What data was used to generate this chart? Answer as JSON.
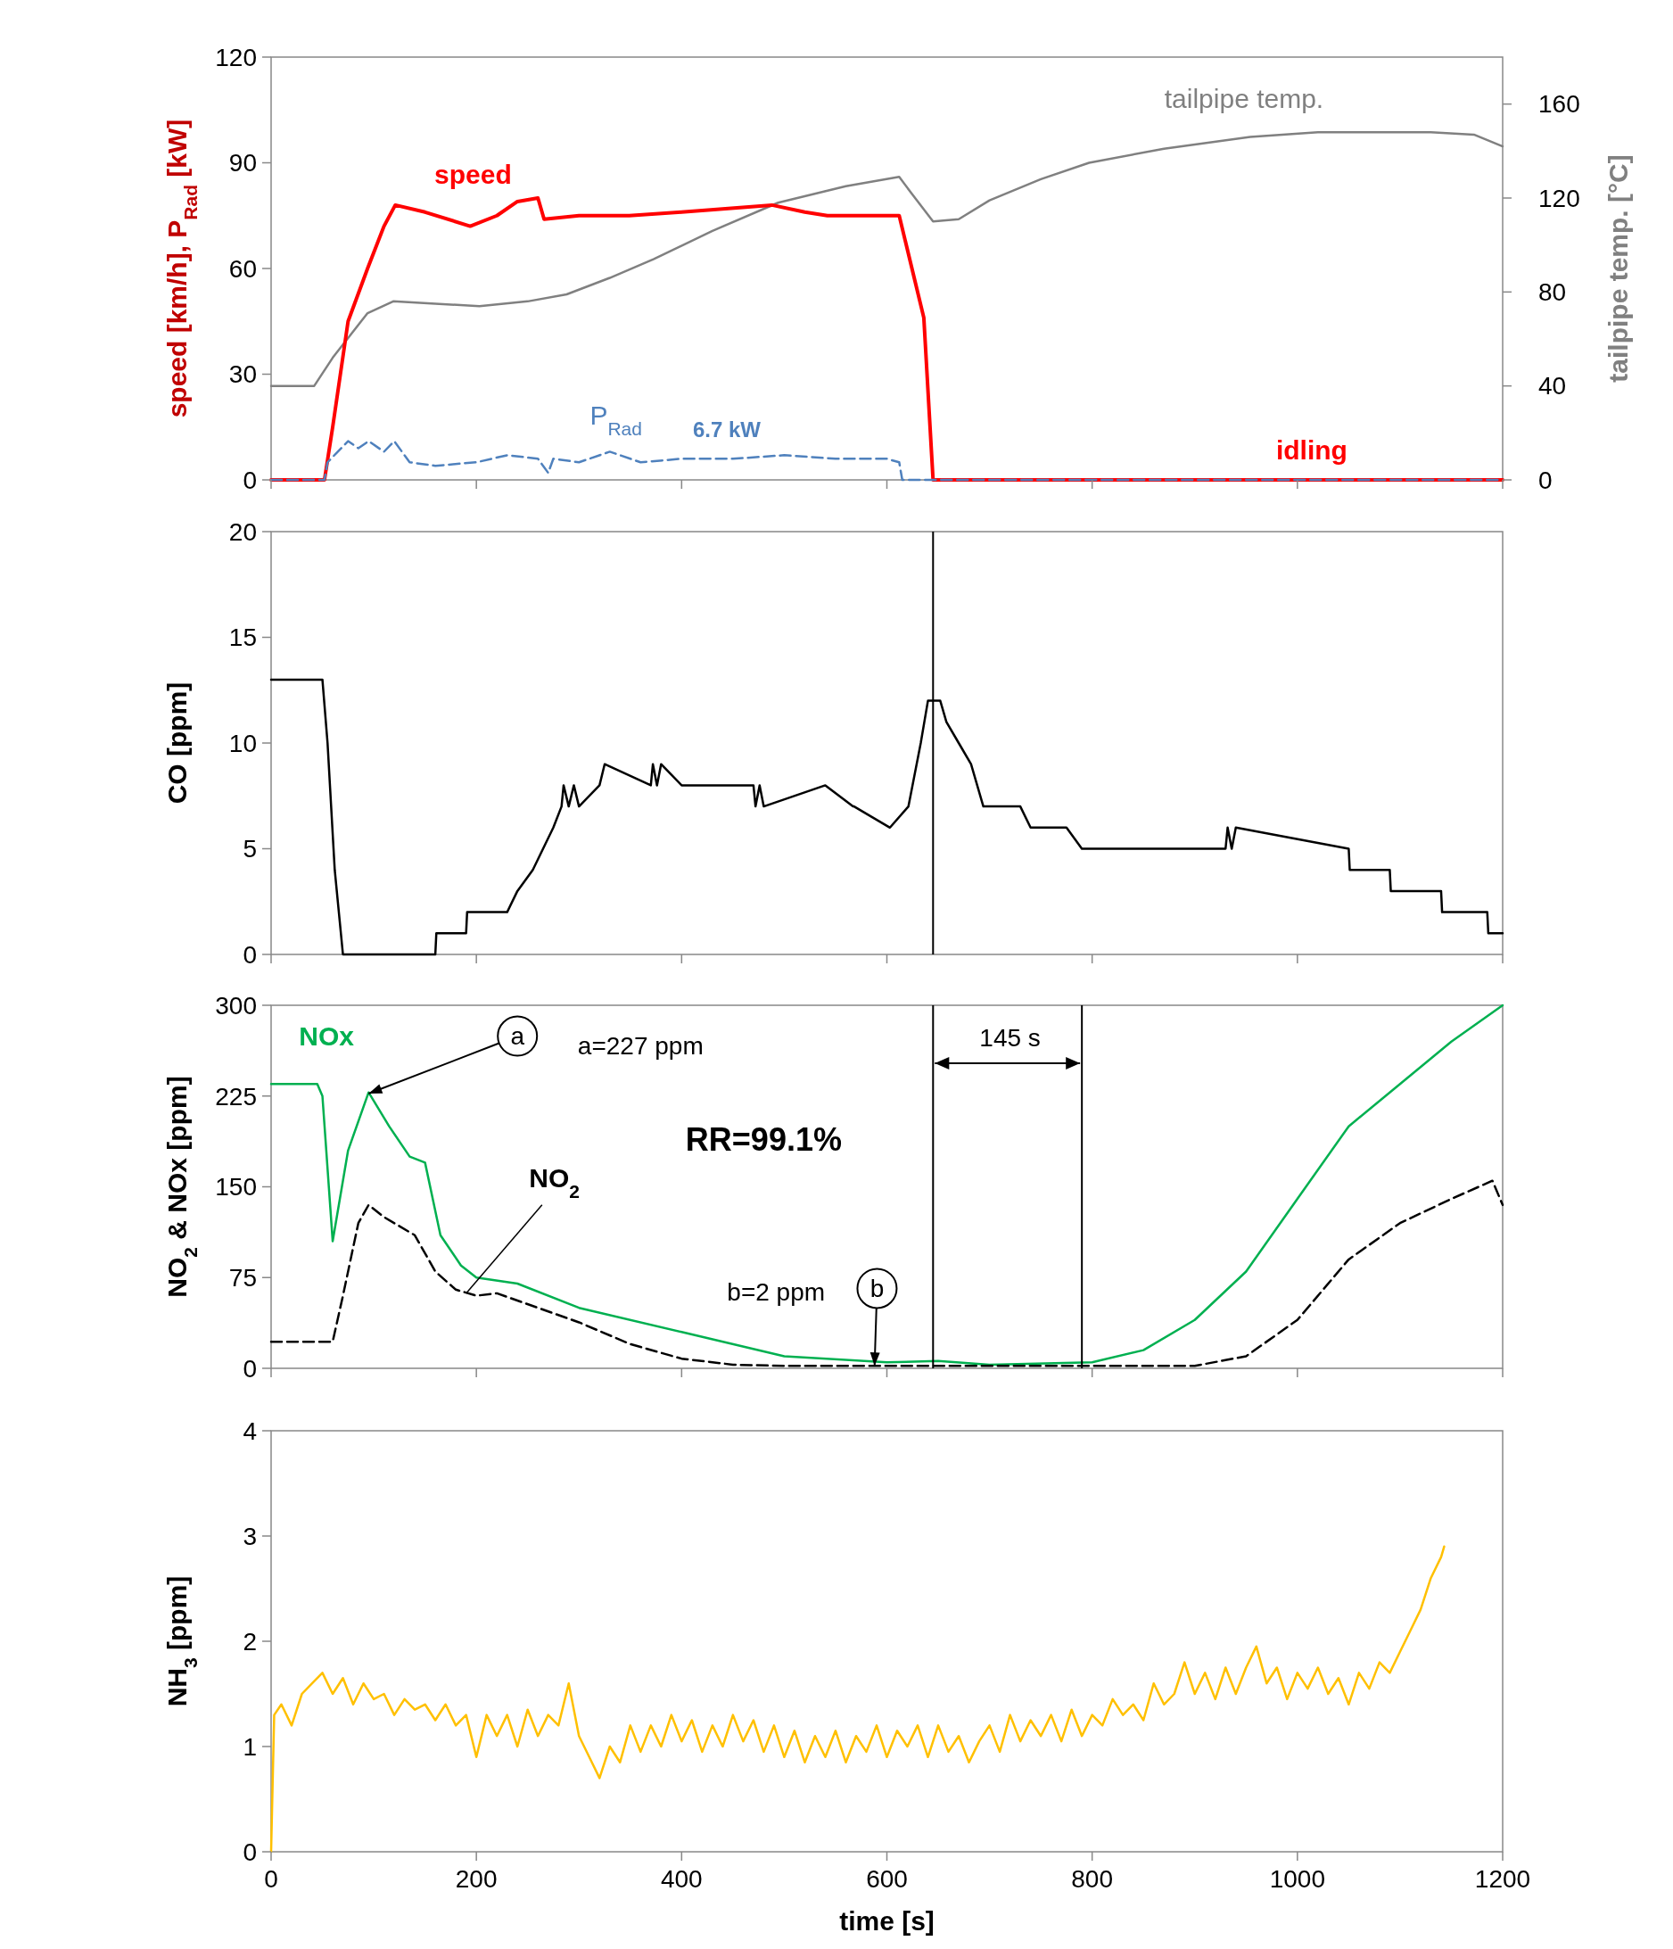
{
  "chart_data": [
    {
      "type": "line",
      "ylabel": "speed [km/h], P$_{Rad}$ [kW]",
      "y2label": "tailpipe temp. [°C]",
      "xlim": [
        0,
        1200
      ],
      "xticks": [
        0,
        200,
        400,
        600,
        800,
        1000,
        1200
      ],
      "ylim": [
        0,
        120
      ],
      "yticks": [
        0,
        30,
        60,
        90,
        120
      ],
      "y2lim": [
        0,
        180
      ],
      "y2ticks": [
        0,
        40,
        80,
        120,
        160
      ],
      "tick_labels": "y",
      "annotations": [
        "6.7 kW",
        "idling"
      ],
      "series": [
        {
          "name": "tailpipe temp.",
          "color": "#808080",
          "axis": "y2",
          "line_style": "solid",
          "x": [
            0,
            42,
            60,
            94,
            119,
            160,
            203,
            250,
            288,
            330,
            373,
            430,
            494,
            560,
            612,
            624,
            645,
            670,
            700,
            750,
            797,
            870,
            954,
            1020,
            1075,
            1130,
            1172,
            1200
          ],
          "values": [
            40,
            40,
            52,
            71,
            76,
            75,
            74,
            76,
            79,
            86,
            94,
            106,
            118,
            125,
            129,
            122,
            110,
            111,
            119,
            128,
            135,
            141,
            146,
            148,
            148,
            148,
            147,
            142
          ]
        },
        {
          "name": "speed",
          "color": "#ff0000",
          "line_style": "solid",
          "x": [
            0,
            52,
            60,
            75,
            94,
            110,
            121,
            150,
            194,
            220,
            240,
            260,
            266,
            300,
            349,
            400,
            488,
            520,
            542,
            612,
            636,
            645,
            1200
          ],
          "values": [
            0,
            0,
            15,
            45,
            60,
            72,
            78,
            76,
            72,
            75,
            79,
            80,
            74,
            75,
            75,
            76,
            78,
            76,
            75,
            75,
            46,
            0,
            0
          ]
        },
        {
          "name": "P$_{Rad}$",
          "color": "#4f81bd",
          "line_style": "dashed",
          "x": [
            0,
            52,
            55,
            65,
            75,
            85,
            95,
            110,
            120,
            135,
            160,
            200,
            230,
            260,
            270,
            275,
            300,
            330,
            360,
            400,
            450,
            500,
            550,
            600,
            612,
            615,
            1200
          ],
          "values": [
            0,
            0,
            5,
            8,
            11,
            9,
            11,
            8,
            11,
            5,
            4,
            5,
            7,
            6,
            2,
            6,
            5,
            8,
            5,
            6,
            6,
            7,
            6,
            6,
            5,
            0,
            0
          ]
        }
      ]
    },
    {
      "type": "line",
      "ylabel": "CO [ppm]",
      "xlim": [
        0,
        1200
      ],
      "xticks": [
        0,
        200,
        400,
        600,
        800,
        1000,
        1200
      ],
      "ylim": [
        0,
        20
      ],
      "yticks": [
        0,
        5,
        10,
        15,
        20
      ],
      "tick_labels": "y",
      "ref_lines": [
        {
          "axis": "x",
          "value": 645,
          "color": "#000000"
        }
      ],
      "series": [
        {
          "color": "#000000",
          "line_style": "solid",
          "x": [
            0,
            50,
            55,
            62,
            70,
            160,
            161,
            190,
            191,
            230,
            240,
            255,
            265,
            275,
            283,
            285,
            290,
            295,
            300,
            320,
            325,
            370,
            372,
            376,
            380,
            400,
            470,
            472,
            476,
            480,
            540,
            567,
            568,
            603,
            621,
            633,
            640,
            652,
            658,
            670,
            682,
            694,
            730,
            740,
            775,
            790,
            930,
            932,
            936,
            940,
            1050,
            1051,
            1090,
            1091,
            1140,
            1141,
            1185,
            1186,
            1200
          ],
          "values": [
            13,
            13,
            10,
            4,
            0,
            0,
            1,
            1,
            2,
            2,
            3,
            4,
            5,
            6,
            7,
            8,
            7,
            8,
            7,
            8,
            9,
            8,
            9,
            8,
            9,
            8,
            8,
            7,
            8,
            7,
            8,
            7,
            7,
            6,
            7,
            10,
            12,
            12,
            11,
            10,
            9,
            7,
            7,
            6,
            6,
            5,
            5,
            6,
            5,
            6,
            5,
            4,
            4,
            3,
            3,
            2,
            2,
            1,
            1
          ]
        }
      ]
    },
    {
      "type": "line",
      "ylabel": "NO$_{2}$ & NOx [ppm]",
      "xlim": [
        0,
        1200
      ],
      "xticks": [
        0,
        200,
        400,
        600,
        800,
        1000,
        1200
      ],
      "ylim": [
        0,
        300
      ],
      "yticks": [
        0,
        75,
        150,
        225,
        300
      ],
      "tick_labels": "y",
      "ref_lines": [
        {
          "axis": "x",
          "value": 645,
          "color": "#000000"
        },
        {
          "axis": "x",
          "value": 790,
          "color": "#000000"
        }
      ],
      "annotations": [
        {
          "text": "a",
          "x": 95,
          "y": 227
        },
        "a=227 ppm",
        "RR=99.1%",
        {
          "text": "b",
          "x": 588,
          "y": 2
        },
        "b=2 ppm",
        "145 s"
      ],
      "series": [
        {
          "name": "NOx",
          "color": "#00b050",
          "line_style": "solid",
          "x": [
            0,
            45,
            50,
            60,
            75,
            95,
            115,
            135,
            150,
            165,
            185,
            200,
            240,
            300,
            400,
            500,
            600,
            650,
            700,
            800,
            850,
            900,
            950,
            1000,
            1050,
            1100,
            1150,
            1200
          ],
          "values": [
            235,
            235,
            225,
            105,
            180,
            228,
            200,
            175,
            170,
            110,
            85,
            75,
            70,
            50,
            30,
            10,
            5,
            6,
            3,
            5,
            15,
            40,
            80,
            140,
            200,
            235,
            270,
            300
          ]
        },
        {
          "name": "NO$_{2}$",
          "color": "#000000",
          "line_style": "dashed",
          "x": [
            0,
            60,
            70,
            85,
            95,
            110,
            140,
            160,
            180,
            200,
            220,
            260,
            300,
            350,
            400,
            450,
            500,
            900,
            950,
            1000,
            1050,
            1100,
            1150,
            1190,
            1200
          ],
          "values": [
            22,
            22,
            60,
            120,
            135,
            125,
            110,
            80,
            65,
            60,
            62,
            50,
            38,
            20,
            8,
            3,
            2,
            2,
            10,
            40,
            90,
            120,
            140,
            155,
            135
          ]
        }
      ]
    },
    {
      "type": "line",
      "ylabel": "NH$_{3}$ [ppm]",
      "xlabel": "time [s]",
      "xlim": [
        0,
        1200
      ],
      "xticks": [
        0,
        200,
        400,
        600,
        800,
        1000,
        1200
      ],
      "ylim": [
        0,
        4
      ],
      "yticks": [
        0,
        1,
        2,
        3,
        4
      ],
      "series": [
        {
          "color": "#ffc000",
          "line_style": "solid",
          "x": [
            0,
            3,
            10,
            20,
            30,
            40,
            50,
            60,
            70,
            80,
            90,
            100,
            110,
            120,
            130,
            140,
            150,
            160,
            170,
            180,
            190,
            200,
            210,
            220,
            230,
            240,
            250,
            260,
            270,
            280,
            290,
            300,
            310,
            320,
            330,
            340,
            350,
            360,
            370,
            380,
            390,
            400,
            410,
            420,
            430,
            440,
            450,
            460,
            470,
            480,
            490,
            500,
            510,
            520,
            530,
            540,
            550,
            560,
            570,
            580,
            590,
            600,
            610,
            620,
            630,
            640,
            650,
            660,
            670,
            680,
            690,
            700,
            710,
            720,
            730,
            740,
            750,
            760,
            770,
            780,
            790,
            800,
            810,
            820,
            830,
            840,
            850,
            860,
            870,
            880,
            890,
            900,
            910,
            920,
            930,
            940,
            950,
            960,
            970,
            980,
            990,
            1000,
            1010,
            1020,
            1030,
            1040,
            1050,
            1060,
            1070,
            1080,
            1090,
            1100,
            1110,
            1120,
            1130,
            1140,
            1143
          ],
          "values": [
            0,
            1.3,
            1.4,
            1.2,
            1.5,
            1.6,
            1.7,
            1.5,
            1.65,
            1.4,
            1.6,
            1.45,
            1.5,
            1.3,
            1.45,
            1.35,
            1.4,
            1.25,
            1.4,
            1.2,
            1.3,
            0.9,
            1.3,
            1.1,
            1.3,
            1.0,
            1.35,
            1.1,
            1.3,
            1.2,
            1.6,
            1.1,
            0.9,
            0.7,
            1.0,
            0.85,
            1.2,
            0.95,
            1.2,
            1.0,
            1.3,
            1.05,
            1.25,
            0.95,
            1.2,
            1.0,
            1.3,
            1.05,
            1.25,
            0.95,
            1.2,
            0.9,
            1.15,
            0.85,
            1.1,
            0.9,
            1.15,
            0.85,
            1.1,
            0.95,
            1.2,
            0.9,
            1.15,
            1.0,
            1.2,
            0.9,
            1.2,
            0.95,
            1.1,
            0.85,
            1.05,
            1.2,
            0.95,
            1.3,
            1.05,
            1.25,
            1.1,
            1.3,
            1.05,
            1.35,
            1.1,
            1.3,
            1.2,
            1.45,
            1.3,
            1.4,
            1.25,
            1.6,
            1.4,
            1.5,
            1.8,
            1.5,
            1.7,
            1.45,
            1.75,
            1.5,
            1.75,
            1.95,
            1.6,
            1.75,
            1.45,
            1.7,
            1.55,
            1.75,
            1.5,
            1.65,
            1.4,
            1.7,
            1.55,
            1.8,
            1.7,
            1.9,
            2.1,
            2.3,
            2.6,
            2.8,
            2.9
          ]
        }
      ]
    }
  ]
}
